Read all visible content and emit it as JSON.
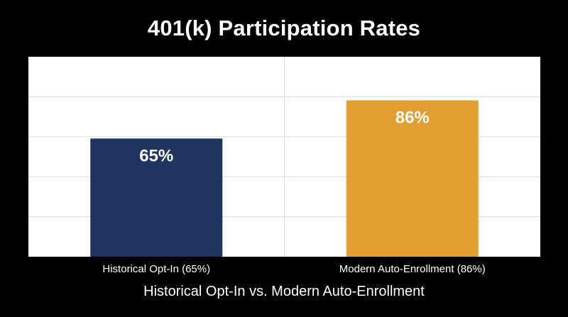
{
  "chart_data": {
    "type": "bar",
    "title": "401(k) Participation Rates",
    "subtitle": "Historical Opt-In vs. Modern Auto-Enrollment",
    "categories": [
      "Historical Opt-In (65%)",
      "Modern Auto-Enrollment (86%)"
    ],
    "values": [
      65,
      86
    ],
    "data_labels": [
      "65%",
      "86%"
    ],
    "colors": [
      "#1f3461",
      "#e39d33"
    ],
    "ylim": [
      0,
      110
    ],
    "grid": true,
    "legend": "none"
  }
}
